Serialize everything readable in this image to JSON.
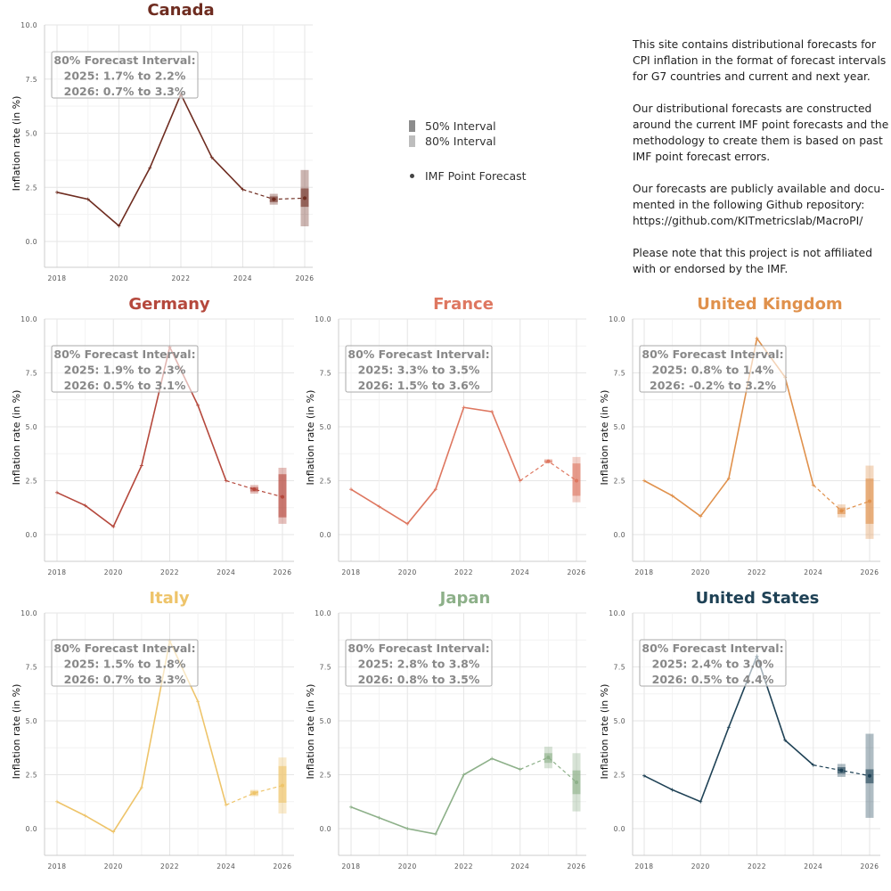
{
  "legend": {
    "interval_50": "50% Interval",
    "interval_80": "80% Interval",
    "point_forecast": "IMF Point Forecast",
    "colors": {
      "interval_50": "#8c8c8c",
      "interval_80": "#bdbdbd",
      "point": "#444444"
    }
  },
  "description": [
    [
      "This site contains distributional forecasts for",
      "CPI inflation in the format of forecast intervals",
      "for G7 countries and current and next year."
    ],
    [
      "Our distributional forecasts are constructed",
      "around the current IMF point forecasts and the",
      "methodology to create them is based on past",
      "IMF point forecast errors."
    ],
    [
      "Our forecasts are publicly available and docu-",
      "mented in the following Github repository:",
      "https://github.com/KITmetricslab/MacroPI/"
    ],
    [
      "Please note that this project is not affiliated",
      "with or endorsed by the IMF."
    ]
  ],
  "chart_data": [
    {
      "type": "line",
      "title": "Canada",
      "color": "#6e2c20",
      "ylabel": "Inflation rate (in %)",
      "ylim": [
        -1.2,
        10
      ],
      "grid": true,
      "xticks": [
        "2018",
        "2020",
        "2022",
        "2024",
        "2026"
      ],
      "yticks": [
        "0.0",
        "2.5",
        "5.0",
        "7.5",
        "10.0"
      ],
      "x": [
        2018,
        2019,
        2020,
        2021,
        2022,
        2023,
        2024
      ],
      "values": [
        2.27,
        1.95,
        0.72,
        3.4,
        6.8,
        3.88,
        2.4
      ],
      "forecast": {
        "x": [
          2025,
          2026
        ],
        "values": [
          1.95,
          2.0
        ],
        "interval_80": [
          [
            1.7,
            2.2
          ],
          [
            0.7,
            3.3
          ]
        ],
        "interval_50": [
          [
            1.82,
            2.08
          ],
          [
            1.6,
            2.45
          ]
        ]
      },
      "annotation": [
        "80% Forecast Interval:",
        "2025: 1.7% to 2.2%",
        "2026: 0.7% to 3.3%"
      ]
    },
    {
      "type": "line",
      "title": "Germany",
      "color": "#b5483c",
      "ylabel": "Inflation rate (in %)",
      "ylim": [
        -1.2,
        10
      ],
      "grid": true,
      "xticks": [
        "2018",
        "2020",
        "2022",
        "2024",
        "2026"
      ],
      "yticks": [
        "0.0",
        "2.5",
        "5.0",
        "7.5",
        "10.0"
      ],
      "x": [
        2018,
        2019,
        2020,
        2021,
        2022,
        2023,
        2024
      ],
      "values": [
        1.95,
        1.35,
        0.37,
        3.2,
        8.7,
        6.0,
        2.5
      ],
      "forecast": {
        "x": [
          2025,
          2026
        ],
        "values": [
          2.1,
          1.75
        ],
        "interval_80": [
          [
            1.9,
            2.3
          ],
          [
            0.5,
            3.1
          ]
        ],
        "interval_50": [
          [
            2.0,
            2.2
          ],
          [
            0.8,
            2.8
          ]
        ]
      },
      "annotation": [
        "80% Forecast Interval:",
        "2025: 1.9% to 2.3%",
        "2026: 0.5% to 3.1%"
      ]
    },
    {
      "type": "line",
      "title": "France",
      "color": "#de7760",
      "ylabel": "Inflation rate (in %)",
      "ylim": [
        -1.2,
        10
      ],
      "grid": true,
      "xticks": [
        "2018",
        "2020",
        "2022",
        "2024",
        "2026"
      ],
      "yticks": [
        "0.0",
        "2.5",
        "5.0",
        "7.5",
        "10.0"
      ],
      "x": [
        2018,
        2019,
        2020,
        2021,
        2022,
        2023,
        2024
      ],
      "values": [
        2.1,
        1.3,
        0.5,
        2.1,
        5.9,
        5.7,
        2.5
      ],
      "forecast": {
        "x": [
          2025,
          2026
        ],
        "values": [
          3.4,
          2.5
        ],
        "interval_80": [
          [
            3.3,
            3.5
          ],
          [
            1.5,
            3.6
          ]
        ],
        "interval_50": [
          [
            3.35,
            3.45
          ],
          [
            1.8,
            3.3
          ]
        ]
      },
      "annotation": [
        "80% Forecast Interval:",
        "2025: 3.3% to 3.5%",
        "2026: 1.5% to 3.6%"
      ]
    },
    {
      "type": "line",
      "title": "United Kingdom",
      "color": "#e0914c",
      "ylabel": "Inflation rate (in %)",
      "ylim": [
        -1.2,
        10
      ],
      "grid": true,
      "xticks": [
        "2018",
        "2020",
        "2022",
        "2024",
        "2026"
      ],
      "yticks": [
        "0.0",
        "2.5",
        "5.0",
        "7.5",
        "10.0"
      ],
      "x": [
        2018,
        2019,
        2020,
        2021,
        2022,
        2023,
        2024
      ],
      "values": [
        2.5,
        1.8,
        0.85,
        2.6,
        9.1,
        7.3,
        2.3
      ],
      "forecast": {
        "x": [
          2025,
          2026
        ],
        "values": [
          1.1,
          1.55
        ],
        "interval_80": [
          [
            0.8,
            1.4
          ],
          [
            -0.2,
            3.2
          ]
        ],
        "interval_50": [
          [
            0.95,
            1.25
          ],
          [
            0.5,
            2.6
          ]
        ]
      },
      "annotation": [
        "80% Forecast Interval:",
        "2025: 0.8% to 1.4%",
        "2026: -0.2% to 3.2%"
      ]
    },
    {
      "type": "line",
      "title": "Italy",
      "color": "#eec46a",
      "ylabel": "Inflation rate (in %)",
      "ylim": [
        -1.2,
        10
      ],
      "grid": true,
      "xticks": [
        "2018",
        "2020",
        "2022",
        "2024",
        "2026"
      ],
      "yticks": [
        "0.0",
        "2.5",
        "5.0",
        "7.5",
        "10.0"
      ],
      "x": [
        2018,
        2019,
        2020,
        2021,
        2022,
        2023,
        2024
      ],
      "values": [
        1.25,
        0.6,
        -0.15,
        1.9,
        8.7,
        5.9,
        1.1
      ],
      "forecast": {
        "x": [
          2025,
          2026
        ],
        "values": [
          1.65,
          2.0
        ],
        "interval_80": [
          [
            1.5,
            1.8
          ],
          [
            0.7,
            3.3
          ]
        ],
        "interval_50": [
          [
            1.55,
            1.75
          ],
          [
            1.2,
            2.9
          ]
        ]
      },
      "annotation": [
        "80% Forecast Interval:",
        "2025: 1.5% to 1.8%",
        "2026: 0.7% to 3.3%"
      ]
    },
    {
      "type": "line",
      "title": "Japan",
      "color": "#8db089",
      "ylabel": "Inflation rate (in %)",
      "ylim": [
        -1.2,
        10
      ],
      "grid": true,
      "xticks": [
        "2018",
        "2020",
        "2022",
        "2024",
        "2026"
      ],
      "yticks": [
        "0.0",
        "2.5",
        "5.0",
        "7.5",
        "10.0"
      ],
      "x": [
        2018,
        2019,
        2020,
        2021,
        2022,
        2023,
        2024
      ],
      "values": [
        1.0,
        0.5,
        0.0,
        -0.25,
        2.5,
        3.25,
        2.75
      ],
      "forecast": {
        "x": [
          2025,
          2026
        ],
        "values": [
          3.3,
          2.15
        ],
        "interval_80": [
          [
            2.8,
            3.8
          ],
          [
            0.8,
            3.5
          ]
        ],
        "interval_50": [
          [
            3.05,
            3.5
          ],
          [
            1.6,
            2.7
          ]
        ]
      },
      "annotation": [
        "80% Forecast Interval:",
        "2025: 2.8% to 3.8%",
        "2026: 0.8% to 3.5%"
      ]
    },
    {
      "type": "line",
      "title": "United States",
      "color": "#1e4155",
      "ylabel": "Inflation rate (in %)",
      "ylim": [
        -1.2,
        10
      ],
      "grid": true,
      "xticks": [
        "2018",
        "2020",
        "2022",
        "2024",
        "2026"
      ],
      "yticks": [
        "0.0",
        "2.5",
        "5.0",
        "7.5",
        "10.0"
      ],
      "x": [
        2018,
        2019,
        2020,
        2021,
        2022,
        2023,
        2024
      ],
      "values": [
        2.45,
        1.8,
        1.25,
        4.7,
        8.0,
        4.1,
        2.95
      ],
      "forecast": {
        "x": [
          2025,
          2026
        ],
        "values": [
          2.7,
          2.45
        ],
        "interval_80": [
          [
            2.4,
            3.0
          ],
          [
            0.5,
            4.4
          ]
        ],
        "interval_50": [
          [
            2.55,
            2.85
          ],
          [
            2.1,
            2.75
          ]
        ]
      },
      "annotation": [
        "80% Forecast Interval:",
        "2025: 2.4% to 3.0%",
        "2026: 0.5% to 4.4%"
      ]
    }
  ]
}
